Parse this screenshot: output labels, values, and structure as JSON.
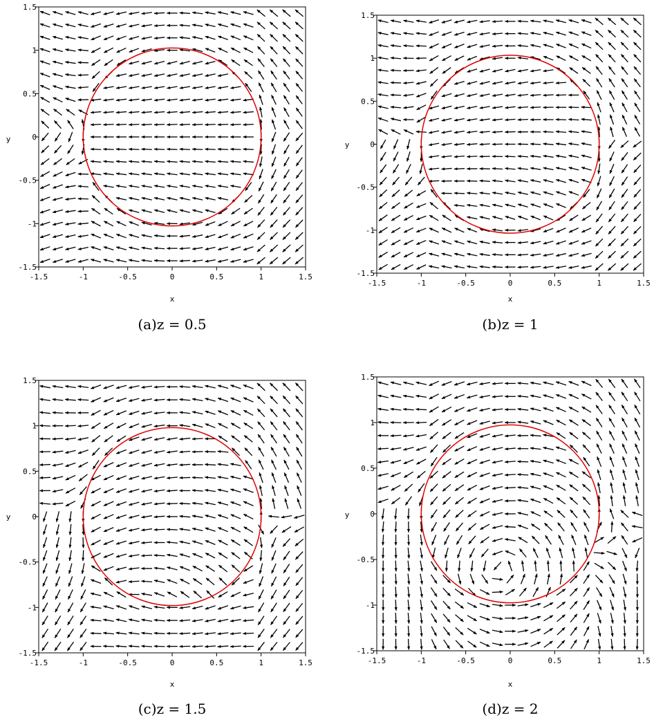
{
  "figure": {
    "panels": [
      {
        "caption": "(a)z = 0.5"
      },
      {
        "caption": "(b)z = 1"
      },
      {
        "caption": "(c)z = 1.5"
      },
      {
        "caption": "(d)z = 2"
      }
    ]
  },
  "colors": {
    "circle": "#e00000",
    "arrow": "#000000",
    "axis": "#000000"
  },
  "chart_data": [
    {
      "type": "quiver",
      "z": 0.5,
      "xlabel": "x",
      "ylabel": "y",
      "xlim": [
        -1.5,
        1.5
      ],
      "ylim": [
        -1.5,
        1.5
      ],
      "xticks": [
        "-1.5",
        "-1",
        "-0.5",
        "0",
        "0.5",
        "1",
        "1.5"
      ],
      "yticks": [
        "-1.5",
        "-1",
        "-0.5",
        "0",
        "0.5",
        "1",
        "1.5"
      ],
      "grid": false,
      "circle": {
        "center": [
          0,
          0
        ],
        "radius": 1
      },
      "field": {
        "grid_n": 21,
        "rotation_deg": 0
      }
    },
    {
      "type": "quiver",
      "z": 1,
      "xlabel": "x",
      "ylabel": "y",
      "xlim": [
        -1.5,
        1.5
      ],
      "ylim": [
        -1.5,
        1.5
      ],
      "xticks": [
        "-1.5",
        "-1",
        "-0.5",
        "0",
        "0.5",
        "1",
        "1.5"
      ],
      "yticks": [
        "-1.5",
        "-1",
        "-0.5",
        "0",
        "0.5",
        "1",
        "1.5"
      ],
      "grid": false,
      "circle": {
        "center": [
          0,
          0
        ],
        "radius": 1
      },
      "field": {
        "grid_n": 21,
        "rotation_deg": 20
      }
    },
    {
      "type": "quiver",
      "z": 1.5,
      "xlabel": "x",
      "ylabel": "y",
      "xlim": [
        -1.5,
        1.5
      ],
      "ylim": [
        -1.5,
        1.5
      ],
      "xticks": [
        "-1.5",
        "-1",
        "-0.5",
        "0",
        "0.5",
        "1",
        "1.5"
      ],
      "yticks": [
        "-1.5",
        "-1",
        "-0.5",
        "0",
        "0.5",
        "1",
        "1.5"
      ],
      "grid": false,
      "circle": {
        "center": [
          0,
          0
        ],
        "radius": 1
      },
      "field": {
        "grid_n": 21,
        "rotation_deg": 45
      }
    },
    {
      "type": "quiver",
      "z": 2,
      "xlabel": "x",
      "ylabel": "y",
      "xlim": [
        -1.5,
        1.5
      ],
      "ylim": [
        -1.5,
        1.5
      ],
      "xticks": [
        "-1.5",
        "-1",
        "-0.5",
        "0",
        "0.5",
        "1",
        "1.5"
      ],
      "yticks": [
        "-1.5",
        "-1",
        "-0.5",
        "0",
        "0.5",
        "1",
        "1.5"
      ],
      "grid": false,
      "circle": {
        "center": [
          0,
          0
        ],
        "radius": 1
      },
      "field": {
        "grid_n": 21,
        "rotation_deg": 70
      }
    }
  ]
}
